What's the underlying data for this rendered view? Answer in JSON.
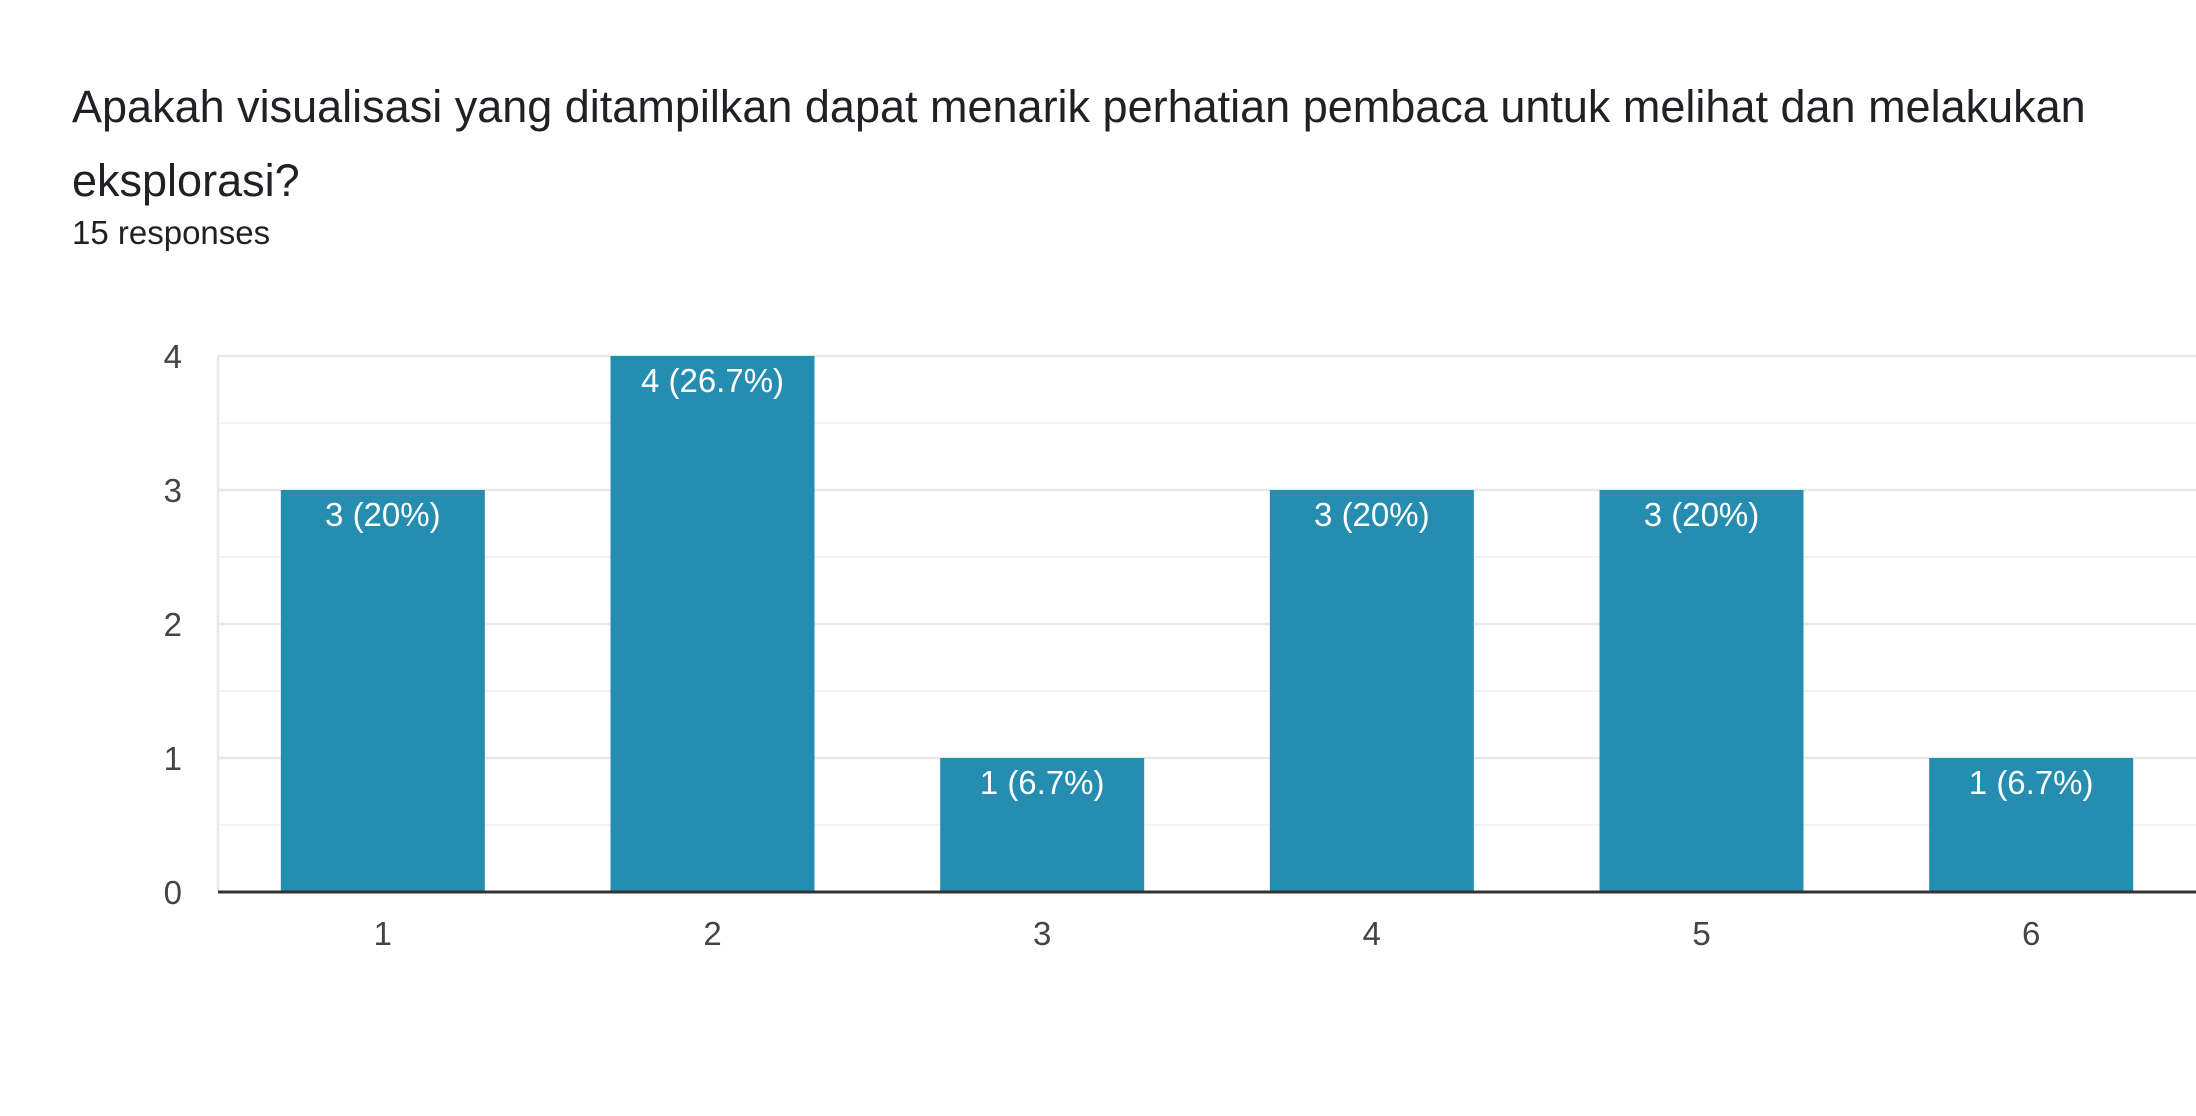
{
  "question": {
    "title": "Apakah visualisasi yang ditampilkan dapat menarik perhatian pembaca untuk melihat dan melakukan eksplorasi?",
    "responses": "15 responses"
  },
  "colors": {
    "bar": "#258db0",
    "gridline": "#e8e8e8",
    "minor_gridline": "#f3f3f3",
    "axis": "#333333",
    "tick_text": "#444444",
    "label_text": "#ffffff"
  },
  "chart_data": {
    "type": "bar",
    "title": "",
    "xlabel": "",
    "ylabel": "",
    "categories": [
      "1",
      "2",
      "3",
      "4",
      "5",
      "6"
    ],
    "values": [
      3,
      4,
      1,
      3,
      3,
      1
    ],
    "data_labels": [
      "3 (20%)",
      "4 (26.7%)",
      "1 (6.7%)",
      "3 (20%)",
      "3 (20%)",
      "1 (6.7%)"
    ],
    "ylim": [
      0,
      4
    ],
    "yticks": [
      "0",
      "1",
      "2",
      "3",
      "4"
    ],
    "grid": true,
    "legend": "none"
  }
}
